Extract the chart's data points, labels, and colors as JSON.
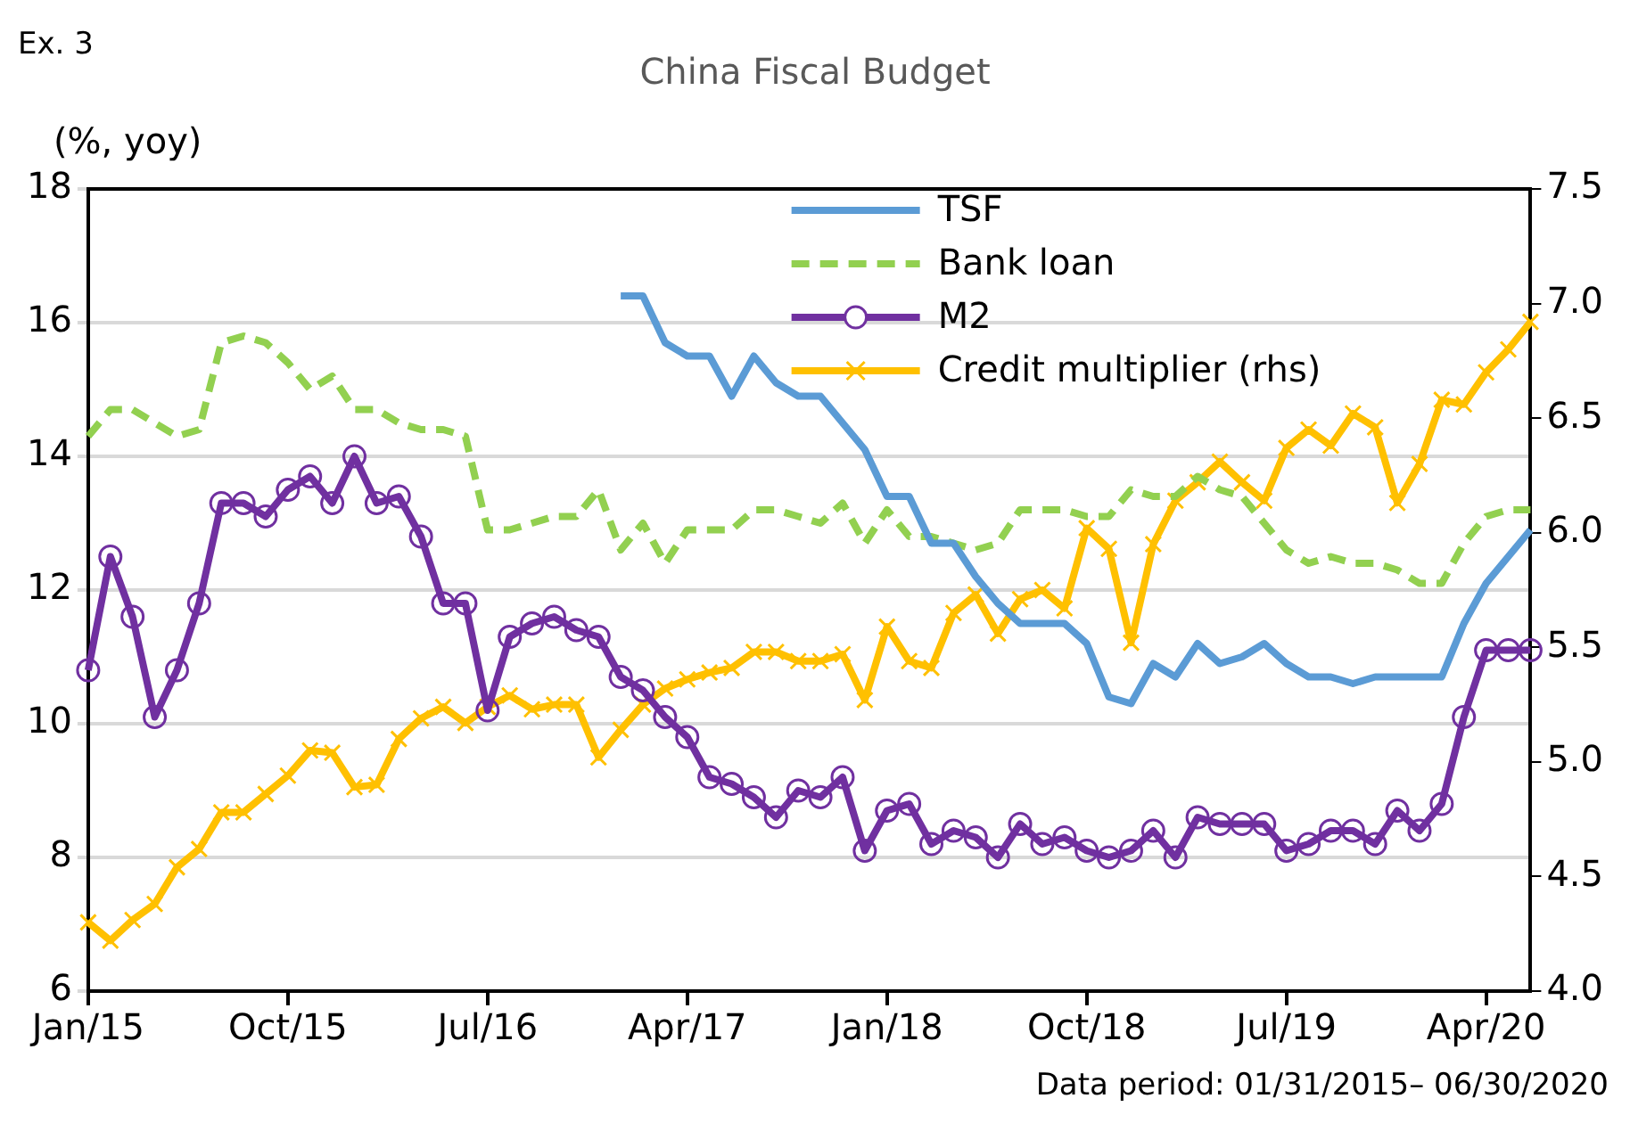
{
  "chart_data": {
    "type": "line",
    "title": "China Fiscal Budget",
    "ylabel": "(%, yoy)",
    "annotations": [
      "Ex. 3",
      "Data period: 01/31/2015– 06/30/2020"
    ],
    "categories": [
      "Jan/15",
      null,
      null,
      null,
      null,
      null,
      null,
      null,
      null,
      "Oct/15",
      null,
      null,
      null,
      null,
      null,
      null,
      null,
      null,
      "Jul/16",
      null,
      null,
      null,
      null,
      null,
      null,
      null,
      null,
      "Apr/17",
      null,
      null,
      null,
      null,
      null,
      null,
      null,
      null,
      "Jan/18",
      null,
      null,
      null,
      null,
      null,
      null,
      null,
      null,
      "Oct/18",
      null,
      null,
      null,
      null,
      null,
      null,
      null,
      null,
      "Jul/19",
      null,
      null,
      null,
      null,
      null,
      null,
      null,
      null,
      "Apr/20",
      null,
      null
    ],
    "series": [
      {
        "name": "TSF",
        "color": "#5b9bd5",
        "marker": "none",
        "line_style": "solid",
        "values": [
          null,
          null,
          null,
          null,
          null,
          null,
          null,
          null,
          null,
          null,
          null,
          null,
          null,
          null,
          null,
          null,
          null,
          null,
          null,
          null,
          null,
          null,
          null,
          null,
          16.4,
          16.4,
          15.7,
          15.5,
          15.5,
          14.9,
          15.5,
          15.1,
          14.9,
          14.9,
          14.5,
          14.1,
          13.4,
          13.4,
          12.7,
          12.7,
          12.2,
          11.8,
          11.5,
          11.5,
          11.5,
          11.2,
          10.4,
          10.3,
          10.9,
          10.7,
          11.2,
          10.9,
          11.0,
          11.2,
          10.9,
          10.7,
          10.7,
          10.6,
          10.7,
          10.7,
          10.7,
          10.7,
          11.5,
          12.1,
          12.5,
          12.9
        ]
      },
      {
        "name": "Bank loan",
        "color": "#92d050",
        "marker": "none",
        "line_style": "dashed",
        "values": [
          14.3,
          14.7,
          14.7,
          14.5,
          14.3,
          14.4,
          15.7,
          15.8,
          15.7,
          15.4,
          15.0,
          15.2,
          14.7,
          14.7,
          14.5,
          14.4,
          14.4,
          14.3,
          12.9,
          12.9,
          13.0,
          13.1,
          13.1,
          13.5,
          12.6,
          13.0,
          12.4,
          12.9,
          12.9,
          12.9,
          13.2,
          13.2,
          13.1,
          13.0,
          13.3,
          12.7,
          13.2,
          12.8,
          12.8,
          12.7,
          12.6,
          12.7,
          13.2,
          13.2,
          13.2,
          13.1,
          13.1,
          13.5,
          13.4,
          13.4,
          13.7,
          13.5,
          13.4,
          13.0,
          12.6,
          12.4,
          12.5,
          12.4,
          12.4,
          12.3,
          12.1,
          12.1,
          12.7,
          13.1,
          13.2,
          13.2
        ]
      },
      {
        "name": "M2",
        "color": "#7030a0",
        "marker": "circle",
        "line_style": "solid",
        "values": [
          10.8,
          12.5,
          11.6,
          10.1,
          10.8,
          11.8,
          13.3,
          13.3,
          13.1,
          13.5,
          13.7,
          13.3,
          14.0,
          13.3,
          13.4,
          12.8,
          11.8,
          11.8,
          10.2,
          11.3,
          11.5,
          11.6,
          11.4,
          11.3,
          10.7,
          10.5,
          10.1,
          9.8,
          9.2,
          9.1,
          8.9,
          8.6,
          9.0,
          8.9,
          9.2,
          8.1,
          8.7,
          8.8,
          8.2,
          8.4,
          8.3,
          8.0,
          8.5,
          8.2,
          8.3,
          8.1,
          8.0,
          8.1,
          8.4,
          8.0,
          8.6,
          8.5,
          8.5,
          8.5,
          8.1,
          8.2,
          8.4,
          8.4,
          8.2,
          8.7,
          8.4,
          8.8,
          10.1,
          11.1,
          11.1,
          11.1
        ]
      },
      {
        "name": "Credit multiplier (rhs)",
        "color": "#ffc000",
        "marker": "cross",
        "line_style": "solid",
        "axis": "y2",
        "values": [
          4.3,
          4.22,
          4.31,
          4.38,
          4.54,
          4.62,
          4.78,
          4.78,
          4.86,
          4.94,
          5.05,
          5.04,
          4.89,
          4.9,
          5.1,
          5.19,
          5.24,
          5.17,
          5.24,
          5.29,
          5.23,
          5.25,
          5.25,
          5.02,
          5.14,
          5.25,
          5.32,
          5.36,
          5.39,
          5.41,
          5.48,
          5.48,
          5.44,
          5.44,
          5.47,
          5.27,
          5.59,
          5.44,
          5.41,
          5.65,
          5.73,
          5.56,
          5.71,
          5.75,
          5.67,
          6.02,
          5.93,
          5.52,
          5.95,
          6.14,
          6.22,
          6.31,
          6.22,
          6.14,
          6.37,
          6.45,
          6.38,
          6.52,
          6.46,
          6.13,
          6.3,
          6.58,
          6.56,
          6.7,
          6.8,
          6.92
        ]
      }
    ],
    "ylim": [
      6,
      18
    ],
    "yticks": [
      6,
      8,
      10,
      12,
      14,
      16,
      18
    ],
    "y2lim": [
      4.0,
      7.5
    ],
    "y2ticks": [
      {
        "value": 4,
        "label": "4.0"
      },
      4.5,
      {
        "value": 5,
        "label": "5.0"
      },
      5.5,
      {
        "value": 6,
        "label": "6.0"
      },
      6.5,
      {
        "value": 7,
        "label": "7.0"
      },
      7.5
    ],
    "grid": "y",
    "legend": "top"
  }
}
